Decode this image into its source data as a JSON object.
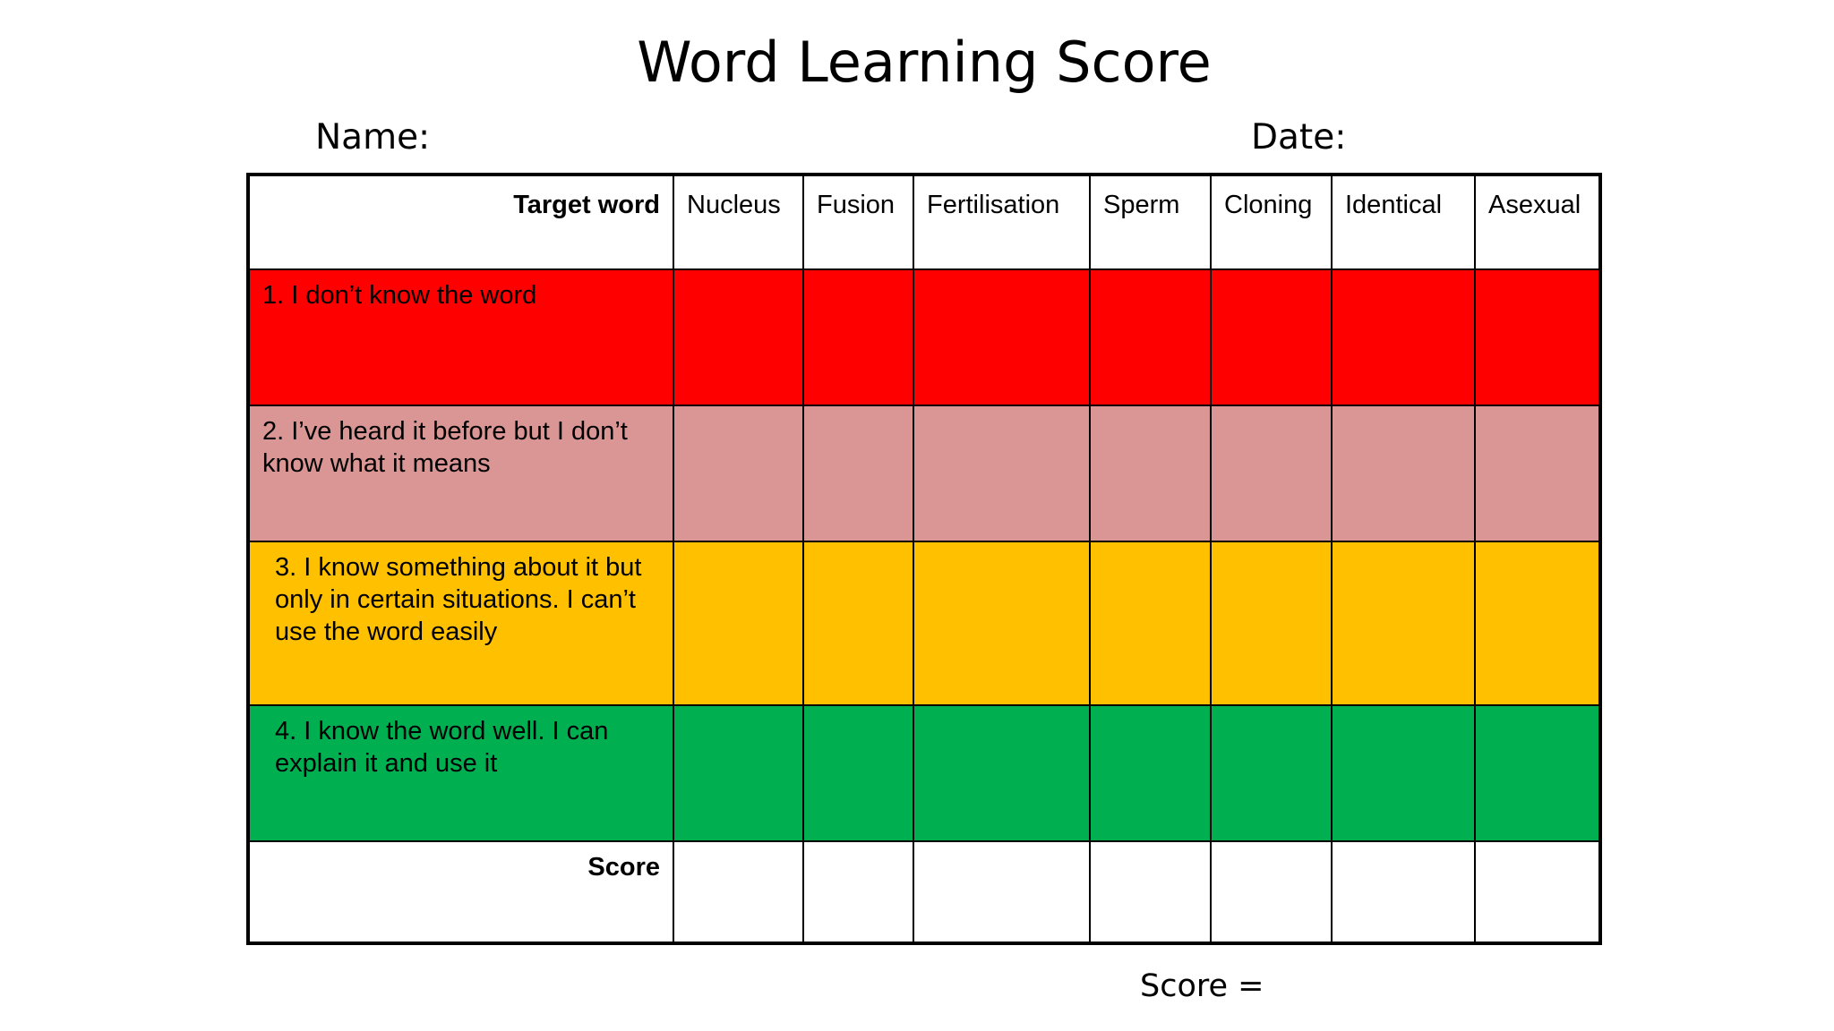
{
  "title": "Word Learning Score",
  "name_label": "Name:",
  "date_label": "Date:",
  "score_total_label": "Score =",
  "table": {
    "corner_label": "Target word",
    "words": [
      "Nucleus",
      "Fusion",
      "Fertilisation",
      "Sperm",
      "Cloning",
      "Identical",
      "Asexual"
    ],
    "rows": [
      {
        "label": "1. I don’t know the word",
        "color": "#ff0000"
      },
      {
        "label": "2. I’ve heard it before but I don’t know what it means",
        "color": "#da9694"
      },
      {
        "label": "3. I know something about it but only in certain situations. I can’t use the word easily",
        "color": "#ffc000"
      },
      {
        "label": "4. I know the word well.  I can explain it and use it",
        "color": "#00b050"
      }
    ],
    "score_label": "Score"
  }
}
